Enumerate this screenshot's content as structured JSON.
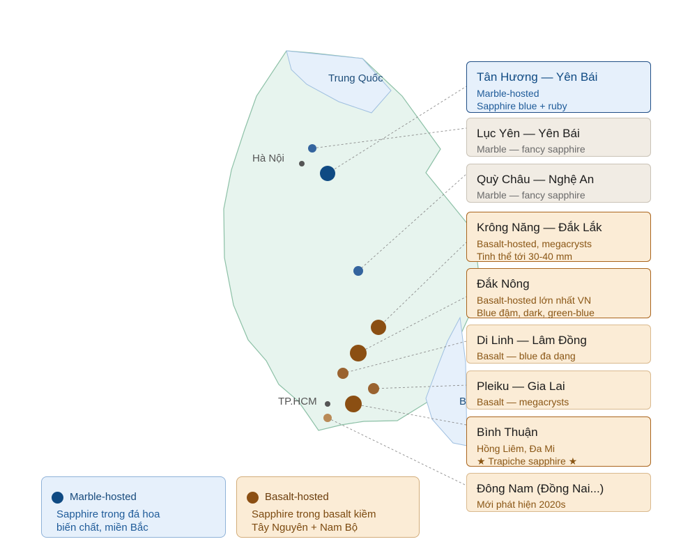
{
  "map": {
    "region_labels": {
      "china": "Trung Quốc",
      "partial": "B"
    },
    "city_labels": {
      "hanoi": "Hà Nội",
      "hcm": "TP.HCM"
    }
  },
  "sites": [
    {
      "title": "Tân Hương — Yên Bái",
      "lines": [
        "Marble-hosted",
        "Sapphire blue + ruby"
      ],
      "type": "marble",
      "featured": true
    },
    {
      "title": "Lục Yên — Yên Bái",
      "lines": [
        "Marble — fancy sapphire"
      ],
      "type": "marble"
    },
    {
      "title": "Quỳ Châu — Nghệ An",
      "lines": [
        "Marble — fancy sapphire"
      ],
      "type": "marble"
    },
    {
      "title": "Krông Năng — Đắk Lắk",
      "lines": [
        "Basalt-hosted, megacrysts",
        "Tinh thể tới 30-40 mm"
      ],
      "type": "basalt"
    },
    {
      "title": "Đắk Nông",
      "lines": [
        "Basalt-hosted lớn nhất VN",
        "Blue đậm, dark, green-blue"
      ],
      "type": "basalt"
    },
    {
      "title": "Di Linh — Lâm Đồng",
      "lines": [
        "Basalt — blue đa dạng"
      ],
      "type": "basalt-light"
    },
    {
      "title": "Pleiku — Gia Lai",
      "lines": [
        "Basalt — megacrysts"
      ],
      "type": "basalt-light"
    },
    {
      "title": "Bình Thuận",
      "lines": [
        "Hồng Liêm, Đa Mi",
        "★ Trapiche sapphire ★"
      ],
      "type": "basalt"
    },
    {
      "title": "Đông Nam (Đồng Nai...)",
      "lines": [
        "Mới phát hiện 2020s"
      ],
      "type": "basalt-light"
    }
  ],
  "legend": {
    "marble": {
      "title": "Marble-hosted",
      "lines": [
        "Sapphire trong đá hoa",
        "biến chất, miền Bắc"
      ]
    },
    "basalt": {
      "title": "Basalt-hosted",
      "lines": [
        "Sapphire trong basalt kiềm",
        "Tây Nguyên + Nam Bộ"
      ]
    }
  },
  "colors": {
    "land": "#e7f4ee",
    "land_border": "#8cc0a6",
    "neighbor": "#e6f0fb",
    "neighbor_border": "#9fbfe0",
    "marble_dark": "#0f4a83",
    "marble_mid": "#34649e",
    "basalt_dark": "#8b4f13",
    "basalt_mid": "#9a6330",
    "basalt_light": "#b98a57",
    "city_dot": "#555555"
  }
}
